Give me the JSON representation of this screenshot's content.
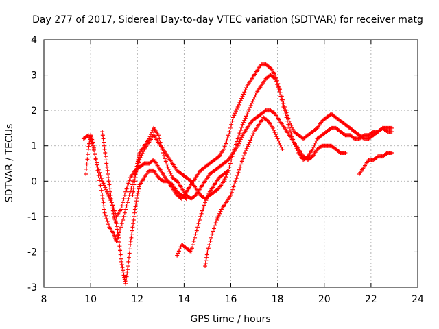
{
  "chart_data": {
    "type": "scatter",
    "title": "Day 277 of 2017, Sidereal Day-to-day VTEC variation (SDTVAR) for receiver matg",
    "xlabel": "GPS time / hours",
    "ylabel": "SDTVAR / TECUs",
    "xlim": [
      8,
      24
    ],
    "ylim": [
      -3,
      4
    ],
    "xticks": [
      8,
      10,
      12,
      14,
      16,
      18,
      20,
      22,
      24
    ],
    "yticks": [
      -3,
      -2,
      -1,
      0,
      1,
      2,
      3,
      4
    ],
    "grid": true,
    "marker": "+",
    "color": "#ff0000",
    "series": [
      {
        "name": "trace-1",
        "points": [
          [
            9.7,
            1.2
          ],
          [
            9.9,
            1.3
          ],
          [
            10.1,
            1.0
          ],
          [
            10.3,
            0.4
          ],
          [
            10.5,
            0.0
          ],
          [
            10.7,
            -0.3
          ],
          [
            10.9,
            -0.6
          ],
          [
            11.1,
            -1.0
          ],
          [
            11.3,
            -0.8
          ],
          [
            11.5,
            -0.3
          ],
          [
            11.7,
            0.1
          ],
          [
            11.9,
            0.3
          ],
          [
            12.1,
            0.4
          ],
          [
            12.3,
            0.5
          ],
          [
            12.5,
            0.5
          ],
          [
            12.7,
            0.6
          ],
          [
            12.9,
            0.4
          ],
          [
            13.1,
            0.2
          ],
          [
            13.3,
            0.0
          ],
          [
            13.5,
            -0.2
          ],
          [
            13.7,
            -0.4
          ],
          [
            13.9,
            -0.5
          ],
          [
            14.1,
            -0.3
          ],
          [
            14.3,
            -0.1
          ],
          [
            14.5,
            0.1
          ],
          [
            14.7,
            0.3
          ],
          [
            14.9,
            0.4
          ],
          [
            15.1,
            0.5
          ],
          [
            15.3,
            0.6
          ],
          [
            15.5,
            0.7
          ],
          [
            15.7,
            0.9
          ],
          [
            15.9,
            1.3
          ],
          [
            16.1,
            1.8
          ],
          [
            16.3,
            2.1
          ],
          [
            16.5,
            2.4
          ],
          [
            16.7,
            2.7
          ],
          [
            16.9,
            2.9
          ],
          [
            17.1,
            3.1
          ],
          [
            17.3,
            3.3
          ],
          [
            17.5,
            3.3
          ],
          [
            17.7,
            3.2
          ],
          [
            17.9,
            3.0
          ],
          [
            18.1,
            2.6
          ],
          [
            18.3,
            2.1
          ],
          [
            18.5,
            1.7
          ],
          [
            18.7,
            1.4
          ],
          [
            18.9,
            1.3
          ],
          [
            19.1,
            1.2
          ],
          [
            19.3,
            1.3
          ],
          [
            19.5,
            1.4
          ],
          [
            19.7,
            1.5
          ],
          [
            19.9,
            1.7
          ],
          [
            20.1,
            1.8
          ],
          [
            20.3,
            1.9
          ],
          [
            20.5,
            1.8
          ],
          [
            20.7,
            1.7
          ],
          [
            20.9,
            1.6
          ],
          [
            21.1,
            1.5
          ],
          [
            21.3,
            1.4
          ],
          [
            21.5,
            1.3
          ],
          [
            21.7,
            1.2
          ],
          [
            21.9,
            1.2
          ],
          [
            22.1,
            1.3
          ],
          [
            22.3,
            1.4
          ],
          [
            22.5,
            1.5
          ],
          [
            22.7,
            1.5
          ],
          [
            22.9,
            1.5
          ]
        ]
      },
      {
        "name": "trace-2",
        "points": [
          [
            9.8,
            0.2
          ],
          [
            9.9,
            0.9
          ],
          [
            10.0,
            1.3
          ],
          [
            10.1,
            1.1
          ],
          [
            10.3,
            0.3
          ],
          [
            10.5,
            -0.4
          ],
          [
            10.6,
            -0.9
          ],
          [
            10.8,
            -1.3
          ],
          [
            11.0,
            -1.5
          ],
          [
            11.1,
            -1.7
          ],
          [
            11.3,
            -1.3
          ],
          [
            11.5,
            -0.8
          ],
          [
            11.7,
            -0.3
          ],
          [
            11.9,
            0.2
          ],
          [
            12.1,
            0.6
          ],
          [
            12.3,
            0.9
          ],
          [
            12.5,
            1.1
          ],
          [
            12.7,
            1.3
          ],
          [
            12.9,
            1.1
          ],
          [
            13.1,
            0.9
          ],
          [
            13.3,
            0.7
          ],
          [
            13.5,
            0.5
          ],
          [
            13.7,
            0.3
          ],
          [
            13.9,
            0.2
          ],
          [
            14.1,
            0.1
          ],
          [
            14.3,
            0.0
          ],
          [
            14.5,
            -0.2
          ],
          [
            14.7,
            -0.4
          ],
          [
            14.9,
            -0.5
          ],
          [
            15.1,
            -0.4
          ],
          [
            15.3,
            -0.3
          ],
          [
            15.5,
            -0.2
          ],
          [
            15.7,
            0.0
          ],
          [
            15.9,
            0.3
          ],
          [
            16.1,
            0.8
          ],
          [
            16.3,
            1.2
          ],
          [
            16.5,
            1.6
          ],
          [
            16.7,
            1.9
          ],
          [
            16.9,
            2.2
          ],
          [
            17.1,
            2.5
          ],
          [
            17.3,
            2.7
          ],
          [
            17.5,
            2.9
          ],
          [
            17.7,
            3.0
          ],
          [
            17.9,
            2.9
          ],
          [
            18.1,
            2.5
          ],
          [
            18.3,
            2.0
          ],
          [
            18.5,
            1.5
          ],
          [
            18.7,
            1.1
          ],
          [
            18.9,
            0.8
          ],
          [
            19.1,
            0.6
          ],
          [
            19.3,
            0.7
          ],
          [
            19.5,
            0.9
          ],
          [
            19.7,
            1.2
          ],
          [
            19.9,
            1.3
          ],
          [
            20.1,
            1.4
          ],
          [
            20.3,
            1.5
          ],
          [
            20.5,
            1.5
          ],
          [
            20.7,
            1.4
          ],
          [
            20.9,
            1.3
          ],
          [
            21.1,
            1.3
          ],
          [
            21.3,
            1.2
          ],
          [
            21.5,
            1.2
          ],
          [
            21.7,
            1.3
          ],
          [
            21.9,
            1.3
          ],
          [
            22.1,
            1.4
          ],
          [
            22.3,
            1.4
          ],
          [
            22.5,
            1.5
          ],
          [
            22.7,
            1.4
          ],
          [
            22.9,
            1.4
          ]
        ]
      },
      {
        "name": "trace-3",
        "points": [
          [
            10.5,
            1.4
          ],
          [
            10.6,
            0.9
          ],
          [
            10.7,
            0.4
          ],
          [
            10.8,
            -0.1
          ],
          [
            10.9,
            -0.6
          ],
          [
            11.0,
            -1.0
          ],
          [
            11.1,
            -1.2
          ],
          [
            11.2,
            -1.6
          ],
          [
            11.3,
            -2.2
          ],
          [
            11.4,
            -2.6
          ],
          [
            11.5,
            -2.9
          ],
          [
            11.6,
            -2.4
          ],
          [
            11.7,
            -1.8
          ],
          [
            11.8,
            -1.3
          ],
          [
            11.9,
            -0.8
          ],
          [
            12.0,
            -0.4
          ],
          [
            12.1,
            -0.1
          ],
          [
            12.3,
            0.1
          ],
          [
            12.5,
            0.3
          ],
          [
            12.7,
            0.3
          ],
          [
            12.9,
            0.1
          ],
          [
            13.1,
            0.0
          ],
          [
            13.3,
            0.0
          ],
          [
            13.5,
            -0.1
          ],
          [
            13.7,
            -0.3
          ],
          [
            13.9,
            -0.4
          ],
          [
            14.1,
            -0.5
          ]
        ]
      },
      {
        "name": "trace-4",
        "points": [
          [
            11.8,
            -0.4
          ],
          [
            11.9,
            0.1
          ],
          [
            12.0,
            0.5
          ],
          [
            12.1,
            0.8
          ],
          [
            12.3,
            1.0
          ],
          [
            12.5,
            1.2
          ],
          [
            12.7,
            1.5
          ],
          [
            12.9,
            1.3
          ],
          [
            13.1,
            0.8
          ],
          [
            13.3,
            0.4
          ],
          [
            13.5,
            0.1
          ],
          [
            13.7,
            0.0
          ],
          [
            13.9,
            -0.2
          ],
          [
            14.1,
            -0.4
          ],
          [
            14.3,
            -0.5
          ],
          [
            14.5,
            -0.4
          ],
          [
            14.7,
            -0.2
          ],
          [
            14.9,
            0.0
          ],
          [
            15.1,
            0.2
          ],
          [
            15.3,
            0.3
          ],
          [
            15.5,
            0.4
          ],
          [
            15.7,
            0.5
          ],
          [
            15.9,
            0.6
          ],
          [
            16.1,
            0.8
          ],
          [
            16.3,
            1.0
          ],
          [
            16.5,
            1.3
          ],
          [
            16.7,
            1.5
          ],
          [
            16.9,
            1.7
          ],
          [
            17.1,
            1.8
          ],
          [
            17.3,
            1.9
          ],
          [
            17.5,
            2.0
          ],
          [
            17.7,
            2.0
          ],
          [
            17.9,
            1.9
          ],
          [
            18.1,
            1.7
          ],
          [
            18.3,
            1.5
          ],
          [
            18.5,
            1.3
          ],
          [
            18.7,
            1.1
          ],
          [
            18.9,
            0.9
          ],
          [
            19.1,
            0.7
          ],
          [
            19.3,
            0.6
          ],
          [
            19.5,
            0.7
          ],
          [
            19.7,
            0.9
          ],
          [
            19.9,
            1.0
          ],
          [
            20.1,
            1.0
          ],
          [
            20.3,
            1.0
          ],
          [
            20.5,
            0.9
          ],
          [
            20.7,
            0.8
          ],
          [
            20.9,
            0.8
          ]
        ]
      },
      {
        "name": "trace-5",
        "points": [
          [
            13.7,
            -2.1
          ],
          [
            13.9,
            -1.8
          ],
          [
            14.1,
            -1.9
          ],
          [
            14.3,
            -2.0
          ],
          [
            14.5,
            -1.5
          ],
          [
            14.7,
            -1.0
          ],
          [
            14.9,
            -0.6
          ],
          [
            15.1,
            -0.3
          ],
          [
            15.3,
            -0.1
          ],
          [
            15.5,
            0.1
          ],
          [
            15.7,
            0.2
          ],
          [
            15.9,
            0.3
          ]
        ]
      },
      {
        "name": "trace-6",
        "points": [
          [
            14.9,
            -2.4
          ],
          [
            15.0,
            -2.0
          ],
          [
            15.2,
            -1.5
          ],
          [
            15.4,
            -1.1
          ],
          [
            15.6,
            -0.8
          ],
          [
            15.8,
            -0.6
          ],
          [
            16.0,
            -0.4
          ],
          [
            16.2,
            0.0
          ],
          [
            16.4,
            0.4
          ],
          [
            16.6,
            0.8
          ],
          [
            16.8,
            1.1
          ],
          [
            17.0,
            1.4
          ],
          [
            17.2,
            1.6
          ],
          [
            17.4,
            1.8
          ],
          [
            17.6,
            1.7
          ],
          [
            17.8,
            1.5
          ],
          [
            18.0,
            1.2
          ],
          [
            18.2,
            0.9
          ]
        ]
      },
      {
        "name": "trace-7",
        "points": [
          [
            21.5,
            0.2
          ],
          [
            21.7,
            0.4
          ],
          [
            21.9,
            0.6
          ],
          [
            22.1,
            0.6
          ],
          [
            22.3,
            0.7
          ],
          [
            22.5,
            0.7
          ],
          [
            22.7,
            0.8
          ],
          [
            22.9,
            0.8
          ]
        ]
      }
    ]
  }
}
